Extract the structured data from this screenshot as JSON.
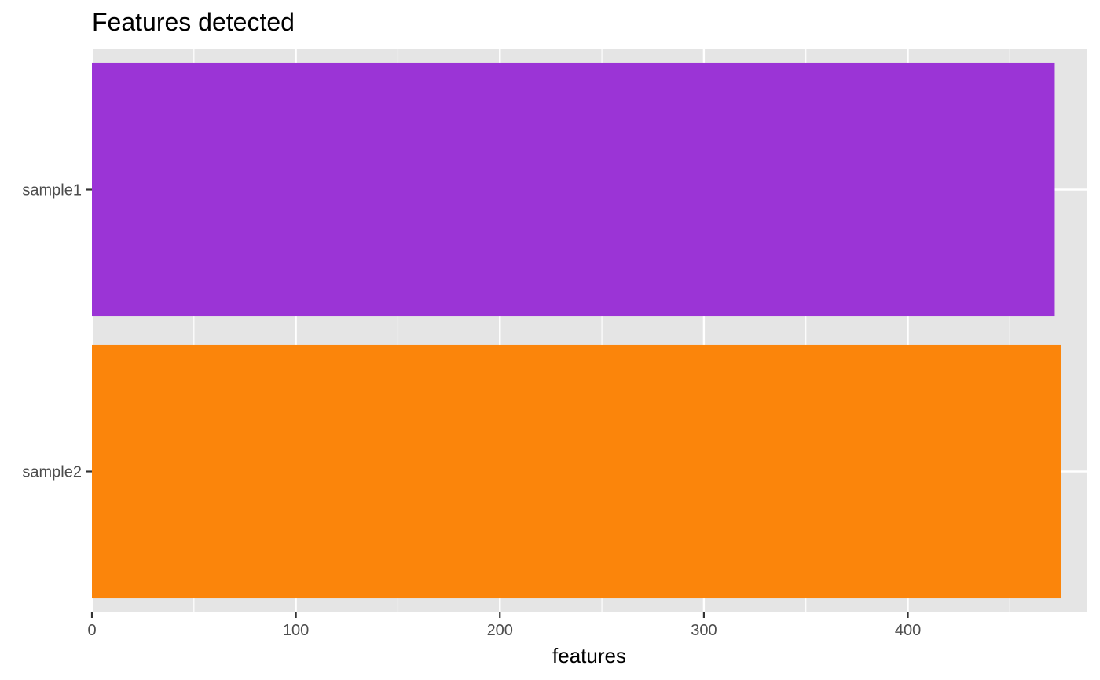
{
  "chart_data": {
    "type": "bar",
    "orientation": "horizontal",
    "title": "Features detected",
    "xlabel": "features",
    "ylabel": "",
    "categories": [
      "sample1",
      "sample2"
    ],
    "values": [
      472,
      475
    ],
    "bar_colors": [
      "#9b34d6",
      "#fb850b"
    ],
    "xlim": [
      0,
      488
    ],
    "x_ticks": [
      0,
      100,
      200,
      300,
      400
    ],
    "x_tick_labels": [
      "0",
      "100",
      "200",
      "300",
      "400"
    ],
    "x_minor_ticks": [
      50,
      150,
      250,
      350,
      450
    ],
    "grid": true,
    "panel_background": "#e5e5e5",
    "grid_color": "#ffffff",
    "legend": "none"
  }
}
